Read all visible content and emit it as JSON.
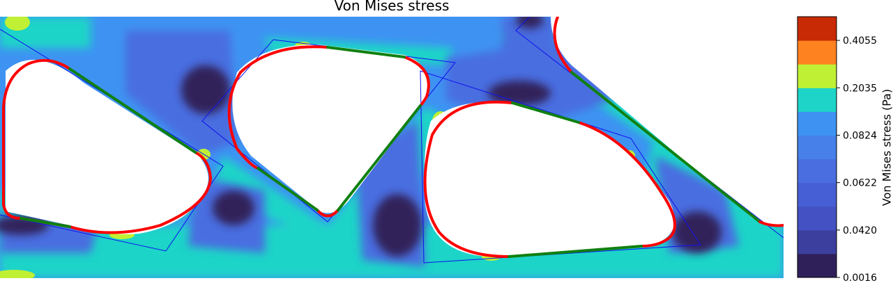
{
  "chart_data": {
    "type": "heatmap",
    "title": "Von Mises stress",
    "colorbar": {
      "label": "Von Mises stress (Pa)",
      "tick_labels": [
        "0.0016",
        "0.0420",
        "0.0622",
        "0.0824",
        "0.2035",
        "0.4055"
      ],
      "levels": [
        0.0016,
        0.0218,
        0.042,
        0.0521,
        0.0622,
        0.0723,
        0.0824,
        0.143,
        0.2035,
        0.3045,
        0.4055,
        0.5065
      ],
      "colors": [
        "#30205a",
        "#3c3f9e",
        "#4451c2",
        "#475fd4",
        "#4a6ee0",
        "#4680e8",
        "#3e93f2",
        "#1ed4c8",
        "#c0f034",
        "#ff8221",
        "#c72a04"
      ]
    },
    "grid": false,
    "legend": "none"
  },
  "colors": {
    "background_field": "#3e93f2",
    "boundary_red": "#ff0000",
    "boundary_green": "#108010",
    "outline_blue": "#1010ee"
  }
}
